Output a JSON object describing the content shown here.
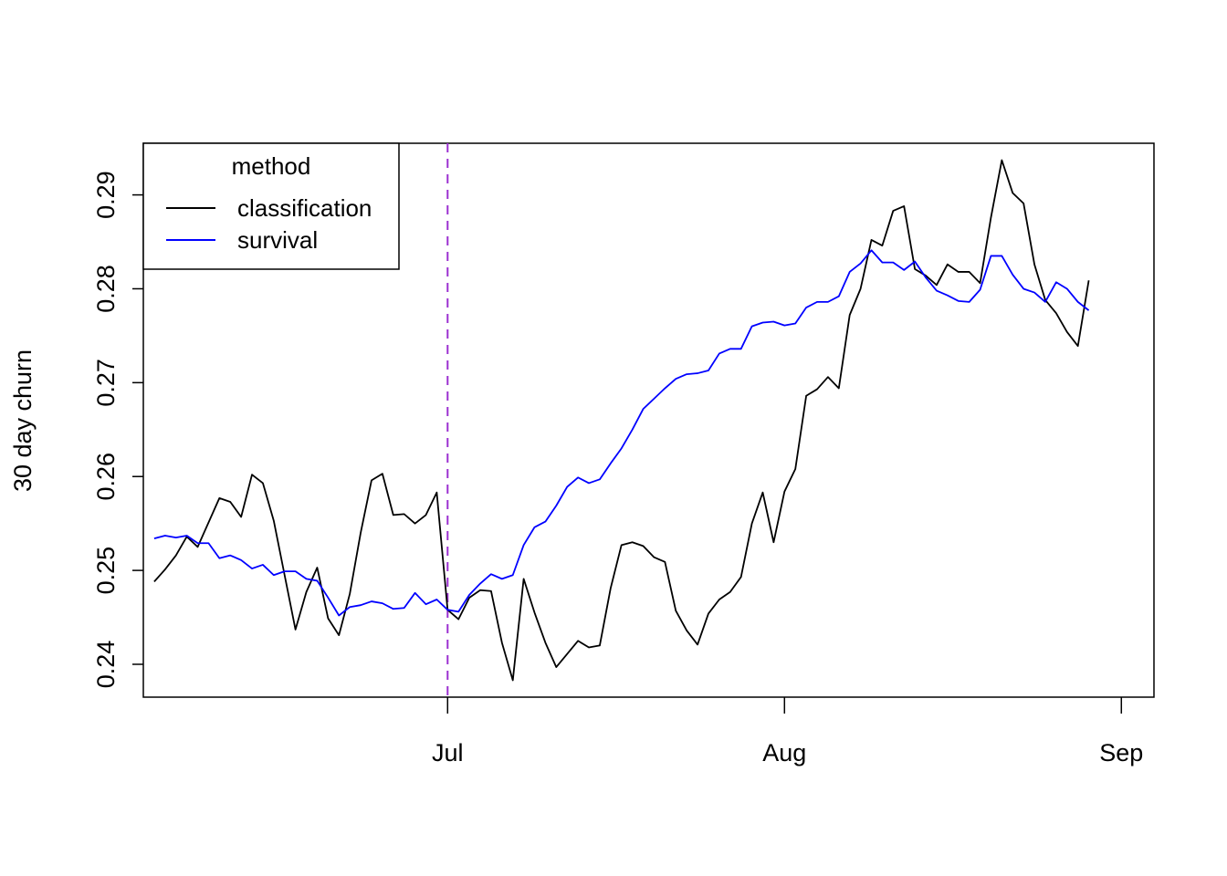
{
  "chart_data": {
    "type": "line",
    "title": "",
    "xlabel": "",
    "ylabel": "30 day churn",
    "xlim": [
      "2020-06-03",
      "2020-09-04"
    ],
    "ylim": [
      0.2365,
      0.2955
    ],
    "x_ticks": [
      {
        "date": "2020-07-01",
        "label": "Jul"
      },
      {
        "date": "2020-08-01",
        "label": "Aug"
      },
      {
        "date": "2020-09-01",
        "label": "Sep"
      }
    ],
    "y_ticks": [
      {
        "value": 0.24,
        "label": "0.24"
      },
      {
        "value": 0.25,
        "label": "0.25"
      },
      {
        "value": 0.26,
        "label": "0.26"
      },
      {
        "value": 0.27,
        "label": "0.27"
      },
      {
        "value": 0.28,
        "label": "0.28"
      },
      {
        "value": 0.29,
        "label": "0.29"
      }
    ],
    "vline": {
      "x": "2020-07-01",
      "color": "#9b30d0",
      "style": "dashed"
    },
    "legend": {
      "title": "method",
      "position": "top-left"
    },
    "x_start": "2020-06-04",
    "series": [
      {
        "name": "classification",
        "color": "#000000",
        "values": [
          0.2488,
          0.2501,
          0.2516,
          0.2536,
          0.2525,
          0.2551,
          0.2577,
          0.2573,
          0.2557,
          0.2602,
          0.2593,
          0.2553,
          0.2495,
          0.2437,
          0.2477,
          0.2503,
          0.2449,
          0.2431,
          0.2475,
          0.254,
          0.2596,
          0.2603,
          0.2559,
          0.256,
          0.255,
          0.2559,
          0.2583,
          0.2458,
          0.2448,
          0.2471,
          0.2479,
          0.2478,
          0.2423,
          0.2383,
          0.2491,
          0.2455,
          0.2423,
          0.2397,
          0.2411,
          0.2425,
          0.2418,
          0.242,
          0.2481,
          0.2527,
          0.253,
          0.2526,
          0.2514,
          0.2509,
          0.2457,
          0.2436,
          0.2421,
          0.2454,
          0.2469,
          0.2477,
          0.2493,
          0.255,
          0.2583,
          0.253,
          0.2584,
          0.2608,
          0.2686,
          0.2693,
          0.2706,
          0.2694,
          0.2772,
          0.28,
          0.2852,
          0.2846,
          0.2883,
          0.2888,
          0.2821,
          0.2814,
          0.2804,
          0.2826,
          0.2818,
          0.2818,
          0.2806,
          0.2876,
          0.2937,
          0.2902,
          0.2891,
          0.2826,
          0.2788,
          0.2774,
          0.2754,
          0.2739,
          0.2809
        ]
      },
      {
        "name": "survival",
        "color": "#0000ff",
        "values": [
          0.2534,
          0.2537,
          0.2535,
          0.2537,
          0.2529,
          0.2529,
          0.2513,
          0.2516,
          0.2511,
          0.2502,
          0.2506,
          0.2495,
          0.2499,
          0.2499,
          0.2491,
          0.2489,
          0.2471,
          0.2452,
          0.2461,
          0.2463,
          0.2467,
          0.2465,
          0.2459,
          0.246,
          0.2476,
          0.2464,
          0.2469,
          0.2458,
          0.2456,
          0.2474,
          0.2486,
          0.2496,
          0.2491,
          0.2495,
          0.2527,
          0.2546,
          0.2552,
          0.2569,
          0.2589,
          0.2599,
          0.2593,
          0.2597,
          0.2614,
          0.263,
          0.265,
          0.2672,
          0.2683,
          0.2694,
          0.2704,
          0.2709,
          0.271,
          0.2713,
          0.2731,
          0.2736,
          0.2736,
          0.276,
          0.2764,
          0.2765,
          0.2761,
          0.2763,
          0.278,
          0.2786,
          0.2786,
          0.2792,
          0.2818,
          0.2827,
          0.2841,
          0.2828,
          0.2828,
          0.282,
          0.2829,
          0.2812,
          0.2798,
          0.2793,
          0.2787,
          0.2786,
          0.2799,
          0.2835,
          0.2835,
          0.2815,
          0.28,
          0.2796,
          0.2786,
          0.2807,
          0.28,
          0.2786,
          0.2777
        ]
      }
    ]
  }
}
